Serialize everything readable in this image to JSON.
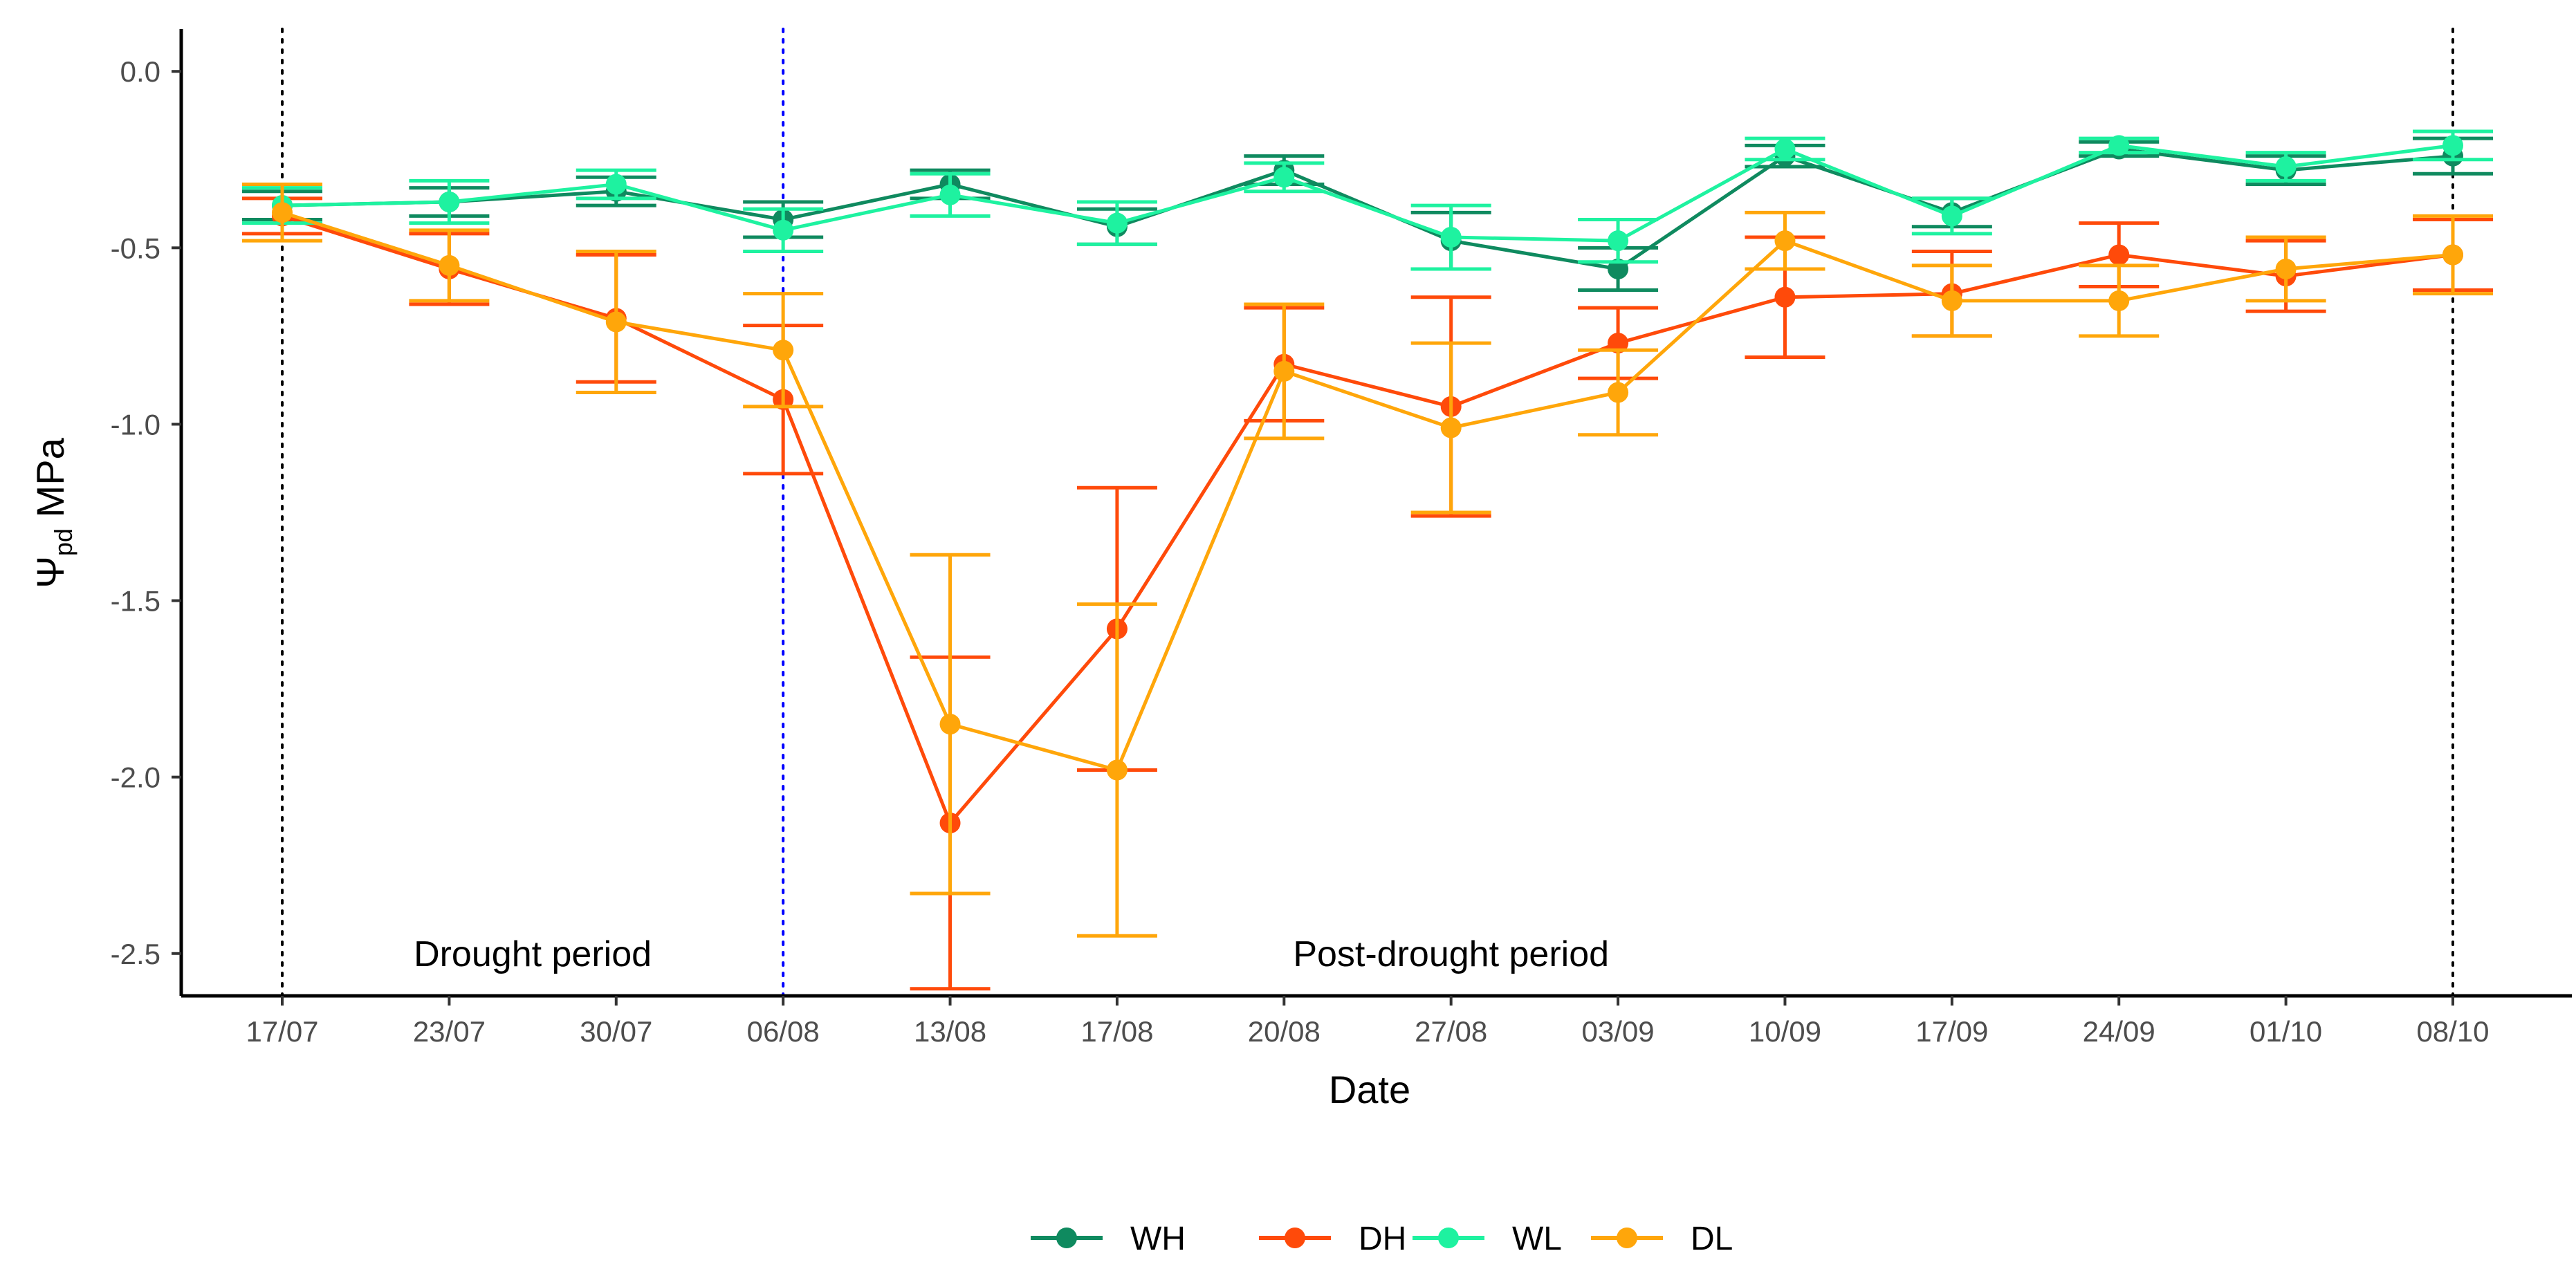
{
  "chart_data": {
    "type": "line",
    "title": "",
    "xlabel": "Date",
    "ylabel_main": "Ψ",
    "ylabel_sub": "pd",
    "ylabel_unit": " MPa",
    "categories": [
      "17/07",
      "23/07",
      "30/07",
      "06/08",
      "13/08",
      "17/08",
      "20/08",
      "27/08",
      "03/09",
      "10/09",
      "17/09",
      "24/09",
      "01/10",
      "08/10"
    ],
    "ylim": [
      -2.62,
      0.12
    ],
    "yticks": [
      0.0,
      -0.5,
      -1.0,
      -1.5,
      -2.0,
      -2.5
    ],
    "ytick_labels": [
      "0.0",
      "-0.5",
      "-1.0",
      "-1.5",
      "-2.0",
      "-2.5"
    ],
    "grid": false,
    "legend_position": "bottom",
    "vlines": [
      {
        "category_index": 0,
        "color": "#000000",
        "style": "dotted"
      },
      {
        "category_index": 3,
        "color": "#0000ff",
        "style": "dotted"
      },
      {
        "category_index": 13,
        "color": "#000000",
        "style": "dotted"
      }
    ],
    "annotations": [
      {
        "text": "Drought period",
        "x_index": 1.5,
        "y": -2.5
      },
      {
        "text": "Post-drought period",
        "x_index": 7.0,
        "y": -2.5
      }
    ],
    "series": [
      {
        "name": "WH",
        "color": "#0f8a5f",
        "values": [
          -0.38,
          -0.37,
          -0.34,
          -0.42,
          -0.32,
          -0.44,
          -0.28,
          -0.48,
          -0.56,
          -0.24,
          -0.4,
          -0.22,
          -0.28,
          -0.24
        ],
        "errors": [
          0.04,
          0.04,
          0.04,
          0.05,
          0.04,
          0.05,
          0.04,
          0.08,
          0.06,
          0.03,
          0.04,
          0.02,
          0.04,
          0.05
        ]
      },
      {
        "name": "DH",
        "color": "#ff4a0a",
        "values": [
          -0.41,
          -0.56,
          -0.7,
          -0.93,
          -2.13,
          -1.58,
          -0.83,
          -0.95,
          -0.77,
          -0.64,
          -0.63,
          -0.52,
          -0.58,
          -0.52
        ],
        "errors": [
          0.05,
          0.1,
          0.18,
          0.21,
          0.47,
          0.4,
          0.16,
          0.31,
          0.1,
          0.17,
          0.12,
          0.09,
          0.1,
          0.1
        ]
      },
      {
        "name": "WL",
        "color": "#1ef2a0",
        "values": [
          -0.38,
          -0.37,
          -0.32,
          -0.45,
          -0.35,
          -0.43,
          -0.3,
          -0.47,
          -0.48,
          -0.22,
          -0.41,
          -0.21,
          -0.27,
          -0.21
        ],
        "errors": [
          0.05,
          0.06,
          0.04,
          0.06,
          0.06,
          0.06,
          0.04,
          0.09,
          0.06,
          0.03,
          0.05,
          0.02,
          0.04,
          0.04
        ]
      },
      {
        "name": "DL",
        "color": "#ffa60a",
        "values": [
          -0.4,
          -0.55,
          -0.71,
          -0.79,
          -1.85,
          -1.98,
          -0.85,
          -1.01,
          -0.91,
          -0.48,
          -0.65,
          -0.65,
          -0.56,
          -0.52
        ],
        "errors": [
          0.08,
          0.1,
          0.2,
          0.16,
          0.48,
          0.47,
          0.19,
          0.24,
          0.12,
          0.08,
          0.1,
          0.1,
          0.09,
          0.11
        ]
      }
    ]
  }
}
